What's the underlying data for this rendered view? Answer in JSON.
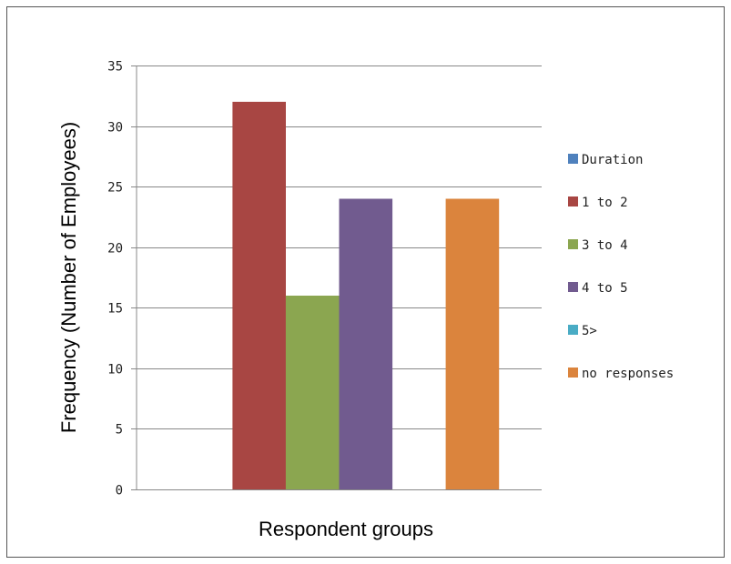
{
  "chart_data": {
    "type": "bar",
    "categories": [
      ""
    ],
    "series": [
      {
        "name": "Duration",
        "values": [
          0
        ],
        "color": "#4f81bd"
      },
      {
        "name": "1 to 2",
        "values": [
          32
        ],
        "color": "#a84643"
      },
      {
        "name": "3 to 4",
        "values": [
          16
        ],
        "color": "#8ba650"
      },
      {
        "name": "4 to 5",
        "values": [
          24
        ],
        "color": "#715b8f"
      },
      {
        "name": "5>",
        "values": [
          0
        ],
        "color": "#4aacc5"
      },
      {
        "name": "no responses",
        "values": [
          24
        ],
        "color": "#db843d"
      }
    ],
    "title": "",
    "xlabel": "Respondent groups",
    "ylabel": "Frequency (Number of Employees)",
    "ylim": [
      0,
      35
    ],
    "yticks": [
      0,
      5,
      10,
      15,
      20,
      25,
      30,
      35
    ],
    "grid": true,
    "legend": "right"
  }
}
